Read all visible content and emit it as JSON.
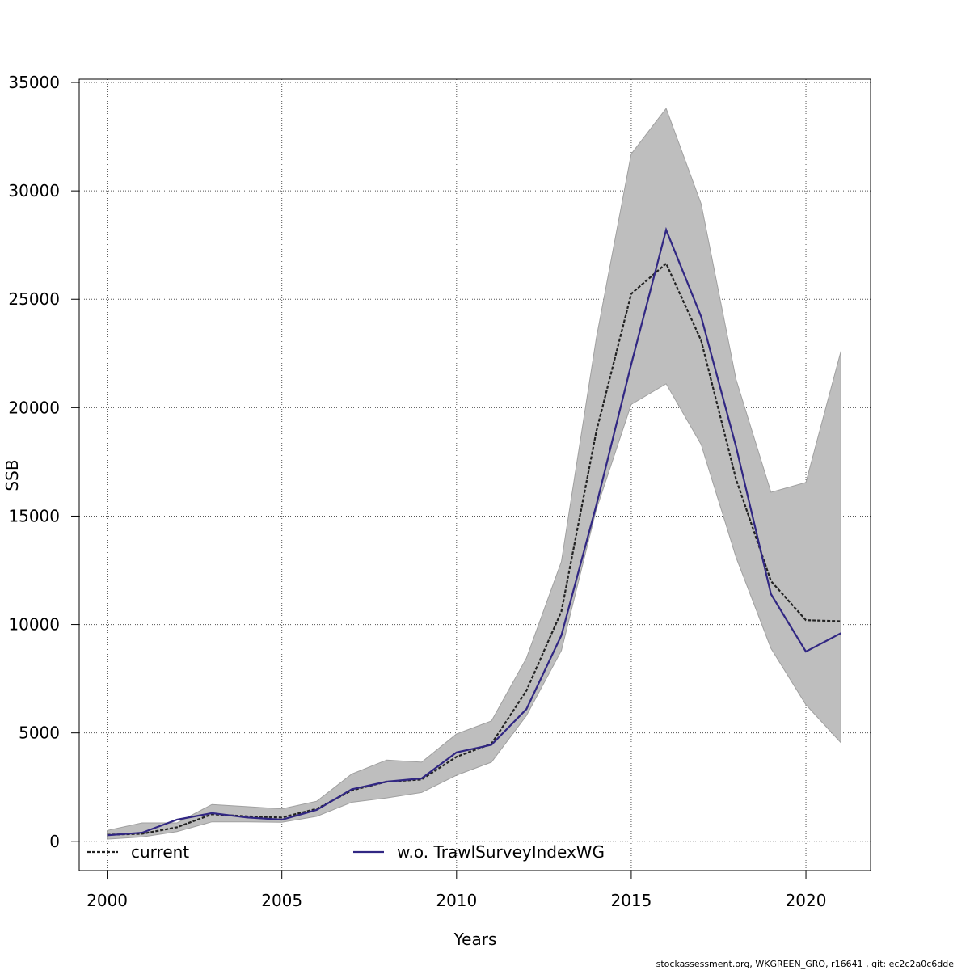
{
  "chart_data": {
    "type": "line",
    "title": "",
    "xlabel": "Years",
    "ylabel": "SSB",
    "xlim": [
      1999.2,
      2021.85
    ],
    "ylim": [
      -1350,
      35150
    ],
    "x_ticks": [
      2000,
      2005,
      2010,
      2015,
      2020
    ],
    "y_ticks": [
      0,
      5000,
      10000,
      15000,
      20000,
      25000,
      30000,
      35000
    ],
    "grid": true,
    "legend_position": "bottom",
    "x": [
      2000,
      2001,
      2002,
      2003,
      2004,
      2005,
      2006,
      2007,
      2008,
      2009,
      2010,
      2011,
      2012,
      2013,
      2014,
      2015,
      2016,
      2017,
      2018,
      2019,
      2020,
      2021
    ],
    "confidence_band": {
      "color": "#bebebe",
      "lower": [
        100,
        200,
        450,
        900,
        900,
        880,
        1150,
        1800,
        2000,
        2250,
        3050,
        3650,
        5800,
        8800,
        15300,
        20150,
        21100,
        18300,
        13100,
        8900,
        6300,
        4550
      ],
      "upper": [
        500,
        850,
        850,
        1700,
        1600,
        1500,
        1850,
        3100,
        3750,
        3650,
        4950,
        5550,
        8450,
        12900,
        23200,
        31700,
        33800,
        29400,
        21300,
        16100,
        16550,
        22600
      ]
    },
    "series": [
      {
        "name": "current",
        "color": "#222222",
        "dashed": true,
        "values": [
          300,
          350,
          650,
          1250,
          1150,
          1100,
          1500,
          2350,
          2750,
          2850,
          3900,
          4500,
          6950,
          10600,
          18900,
          25250,
          26650,
          23100,
          16700,
          12000,
          10200,
          10150
        ]
      },
      {
        "name": "w.o. TrawlSurveyIndexWG",
        "color": "#312783",
        "dashed": false,
        "values": [
          280,
          400,
          1000,
          1300,
          1100,
          1000,
          1450,
          2400,
          2750,
          2900,
          4100,
          4450,
          6100,
          9500,
          15500,
          22000,
          28200,
          24200,
          18200,
          11400,
          8750,
          9600
        ]
      }
    ]
  },
  "footer_text": "stockassessment.org, WKGREEN_GRO, r16641 , git: ec2c2a0c6dde"
}
